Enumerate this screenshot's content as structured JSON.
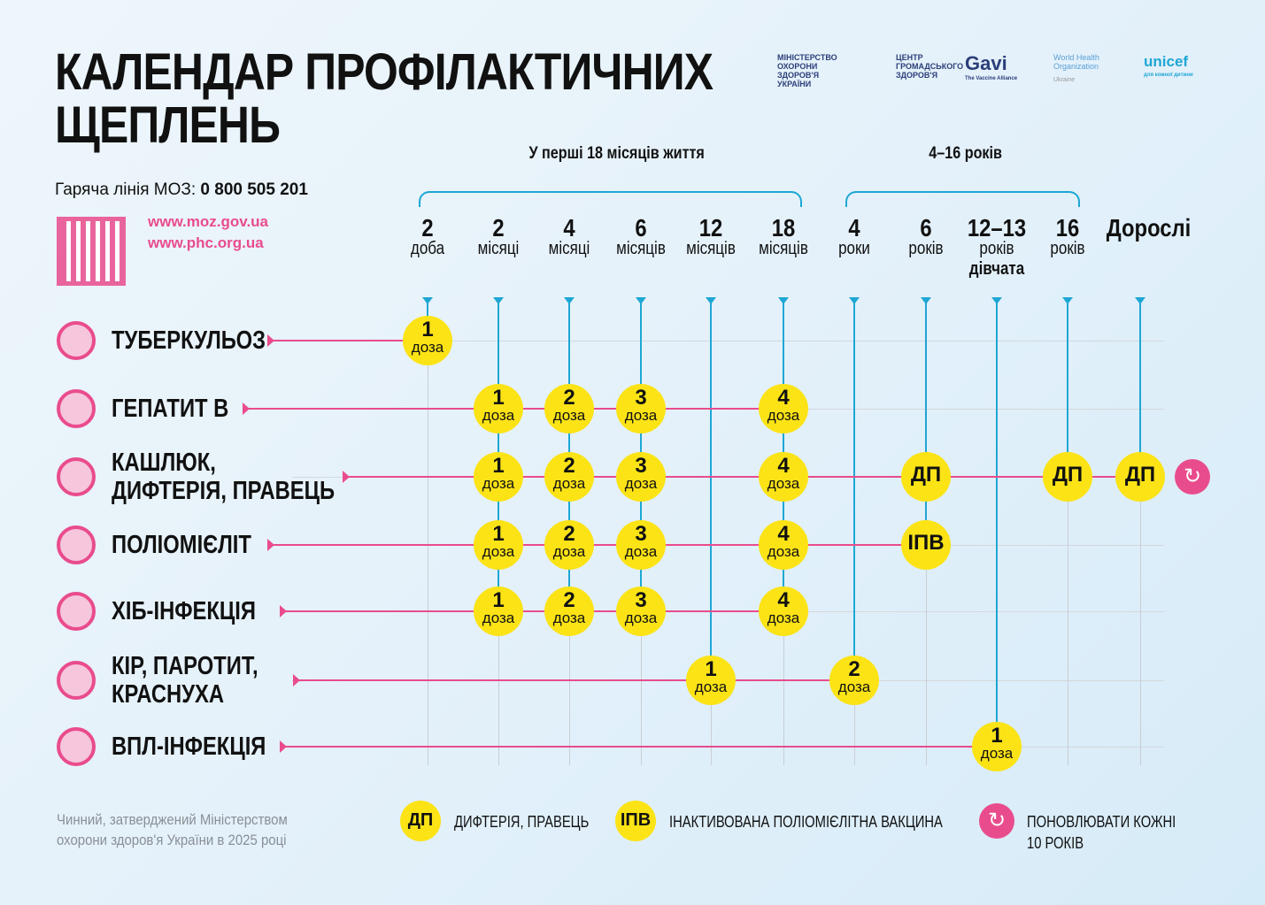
{
  "title_lines": [
    "КАЛЕНДАР ПРОФІЛАКТИЧНИХ",
    "ЩЕПЛЕНЬ"
  ],
  "hotline_label": "Гаряча лінія МОЗ:",
  "hotline_number": "0 800 505 201",
  "links": [
    "www.moz.gov.ua",
    "www.phc.org.ua"
  ],
  "logos": {
    "moz": "МІНІСТЕРСТВО ОХОРОНИ ЗДОРОВ'Я УКРАЇНИ",
    "phc": "ЦЕНТР ГРОМАДСЬКОГО ЗДОРОВ'Я",
    "gavi": "Gavi",
    "gavi_sub": "The Vaccine Alliance",
    "who": "World Health Organization",
    "who_sub": "Ukraine",
    "unicef": "unicef",
    "unicef_sub": "для кожної дитини"
  },
  "groups": [
    "У перші 18 місяців життя",
    "4–16 років"
  ],
  "columns": [
    {
      "n": "2",
      "u": "доба"
    },
    {
      "n": "2",
      "u": "місяці"
    },
    {
      "n": "4",
      "u": "місяці"
    },
    {
      "n": "6",
      "u": "місяців"
    },
    {
      "n": "12",
      "u": "місяців"
    },
    {
      "n": "18",
      "u": "місяців"
    },
    {
      "n": "4",
      "u": "роки"
    },
    {
      "n": "6",
      "u": "років"
    },
    {
      "n": "12–13",
      "u": "років",
      "g": "дівчата"
    },
    {
      "n": "16",
      "u": "років"
    },
    {
      "n": "Дорослі",
      "u": ""
    }
  ],
  "diseases": [
    {
      "name": [
        "ТУБЕРКУЛЬОЗ"
      ],
      "doses": [
        [
          0,
          "1",
          "доза"
        ]
      ]
    },
    {
      "name": [
        "ГЕПАТИТ В"
      ],
      "doses": [
        [
          1,
          "1",
          "доза"
        ],
        [
          2,
          "2",
          "доза"
        ],
        [
          3,
          "3",
          "доза"
        ],
        [
          5,
          "4",
          "доза"
        ]
      ]
    },
    {
      "name": [
        "КАШЛЮК,",
        "ДИФТЕРІЯ, ПРАВЕЦЬ"
      ],
      "doses": [
        [
          1,
          "1",
          "доза"
        ],
        [
          2,
          "2",
          "доза"
        ],
        [
          3,
          "3",
          "доза"
        ],
        [
          5,
          "4",
          "доза"
        ],
        [
          7,
          "ДП",
          ""
        ],
        [
          9,
          "ДП",
          ""
        ],
        [
          10,
          "ДП",
          ""
        ]
      ],
      "renew": true
    },
    {
      "name": [
        "ПОЛІОМІЄЛІТ"
      ],
      "doses": [
        [
          1,
          "1",
          "доза"
        ],
        [
          2,
          "2",
          "доза"
        ],
        [
          3,
          "3",
          "доза"
        ],
        [
          5,
          "4",
          "доза"
        ],
        [
          7,
          "ІПВ",
          ""
        ]
      ]
    },
    {
      "name": [
        "ХІБ-ІНФЕКЦІЯ"
      ],
      "doses": [
        [
          1,
          "1",
          "доза"
        ],
        [
          2,
          "2",
          "доза"
        ],
        [
          3,
          "3",
          "доза"
        ],
        [
          5,
          "4",
          "доза"
        ]
      ]
    },
    {
      "name": [
        "КІР, ПАРОТИТ,",
        "КРАСНУХА"
      ],
      "doses": [
        [
          4,
          "1",
          "доза"
        ],
        [
          6,
          "2",
          "доза"
        ]
      ]
    },
    {
      "name": [
        "ВПЛ-ІНФЕКЦІЯ"
      ],
      "doses": [
        [
          8,
          "1",
          "доза"
        ]
      ]
    }
  ],
  "footnote": [
    "Чинний, затверджений Міністерством",
    "охорони здоров'я України в 2025 році"
  ],
  "legend": [
    {
      "badge": "ДП",
      "text": "ДИФТЕРІЯ, ПРАВЕЦЬ"
    },
    {
      "badge": "ІПВ",
      "text": "ІНАКТИВОВАНА ПОЛІОМІЄЛІТНА ВАКЦИНА"
    },
    {
      "badge": "renew-icon",
      "text": "ПОНОВЛЮВАТИ КОЖНІ 10 РОКІВ"
    }
  ],
  "colors": {
    "yellow": "#fbe316",
    "pink": "#e94c8c",
    "blue": "#1ea7d4"
  }
}
